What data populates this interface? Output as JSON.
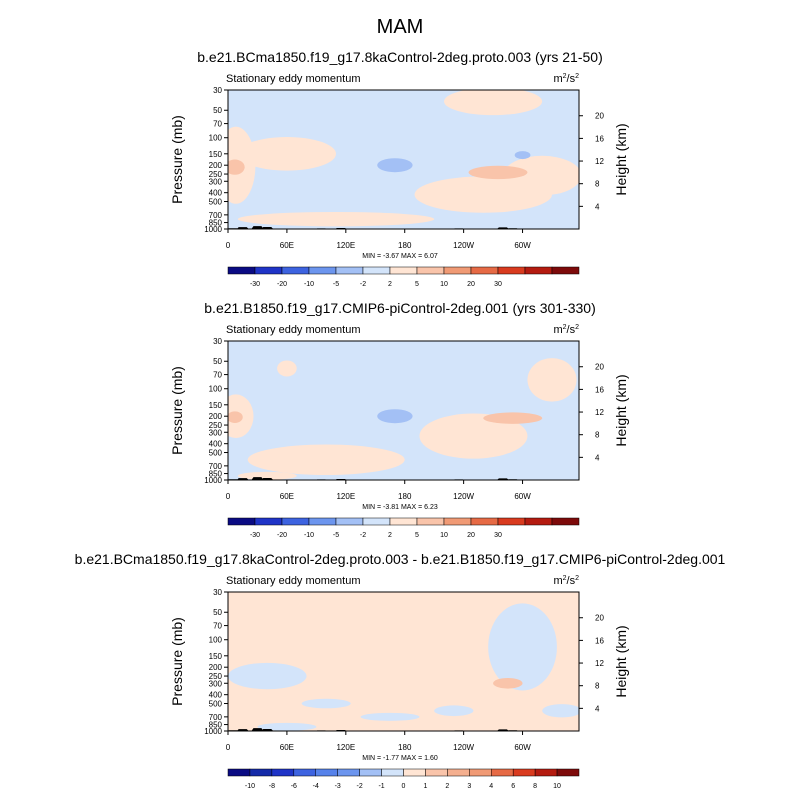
{
  "figure_title": "MAM",
  "colors": {
    "land": "#000000",
    "grid_none": "none"
  },
  "chart_data": [
    {
      "type": "heatmap",
      "title": "b.e21.BCma1850.f19_g17.8kaControl-2deg.proto.003 (yrs 21-50)",
      "subtitle_left": "Stationary eddy momentum",
      "units": "m²/s²",
      "units_base": "m",
      "units_sup1": "2",
      "units_mid": "/s",
      "units_sup2": "2",
      "ylabel_left": "Pressure (mb)",
      "ylabel_right": "Height (km)",
      "x_ticks": [
        "0",
        "60E",
        "120E",
        "180",
        "120W",
        "60W"
      ],
      "x_tick_values": [
        0,
        60,
        120,
        180,
        240,
        300
      ],
      "x_range": [
        0,
        357.5
      ],
      "y_ticks": [
        "30",
        "50",
        "70",
        "100",
        "150",
        "200",
        "250",
        "300",
        "400",
        "500",
        "700",
        "850",
        "1000"
      ],
      "y_tick_values": [
        30,
        50,
        70,
        100,
        150,
        200,
        250,
        300,
        400,
        500,
        700,
        850,
        1000
      ],
      "y_range": [
        30,
        1000
      ],
      "right_ticks": [
        "20",
        "16",
        "12",
        "8",
        "4"
      ],
      "right_tick_values": [
        20,
        16,
        12,
        8,
        4
      ],
      "stats": "MIN = -3.67   MAX =  6.07",
      "colorbar_labels": [
        "-30",
        "-20",
        "-10",
        "-5",
        "-2",
        "2",
        "5",
        "10",
        "20",
        "30"
      ],
      "colorbar_colors": [
        "#0a0b83",
        "#1f34c7",
        "#3d63e0",
        "#6c95ee",
        "#a3c0f5",
        "#d3e4fa",
        "#ffe5d4",
        "#f9c4aa",
        "#f09a75",
        "#e66a45",
        "#d93b1f",
        "#b41b10",
        "#7d0a0a"
      ],
      "field": {
        "background": "#d3e4fa",
        "regions": [
          {
            "level": "pos_weak",
            "cx": 110,
            "cy": 780,
            "rx": 100,
            "ry": 140
          },
          {
            "level": "pos_weak",
            "cx": 260,
            "cy": 420,
            "rx": 70,
            "ry": 180
          },
          {
            "level": "pos_weak",
            "cx": 320,
            "cy": 260,
            "rx": 40,
            "ry": 120
          },
          {
            "level": "pos_weak",
            "cx": 60,
            "cy": 150,
            "rx": 50,
            "ry": 60
          },
          {
            "level": "pos_weak",
            "cx": 8,
            "cy": 200,
            "rx": 20,
            "ry": 150
          },
          {
            "level": "pos_weak",
            "cx": 270,
            "cy": 40,
            "rx": 50,
            "ry": 20
          },
          {
            "level": "pos_mod",
            "cx": 7,
            "cy": 210,
            "rx": 10,
            "ry": 40
          },
          {
            "level": "pos_mod",
            "cx": 275,
            "cy": 240,
            "rx": 30,
            "ry": 40
          },
          {
            "level": "neg_mod",
            "cx": 170,
            "cy": 200,
            "rx": 18,
            "ry": 35
          },
          {
            "level": "neg_mod",
            "cx": 300,
            "cy": 155,
            "rx": 8,
            "ry": 12
          }
        ]
      },
      "topography": [
        {
          "lon": 5,
          "p": 980
        },
        {
          "lon": 15,
          "p": 955
        },
        {
          "lon": 30,
          "p": 930
        },
        {
          "lon": 40,
          "p": 950
        },
        {
          "lon": 95,
          "p": 985
        },
        {
          "lon": 115,
          "p": 975
        },
        {
          "lon": 235,
          "p": 985
        },
        {
          "lon": 280,
          "p": 960
        },
        {
          "lon": 290,
          "p": 980
        }
      ]
    },
    {
      "type": "heatmap",
      "title": "b.e21.B1850.f19_g17.CMIP6-piControl-2deg.001 (yrs 301-330)",
      "subtitle_left": "Stationary eddy momentum",
      "units": "m²/s²",
      "units_base": "m",
      "units_sup1": "2",
      "units_mid": "/s",
      "units_sup2": "2",
      "ylabel_left": "Pressure (mb)",
      "ylabel_right": "Height (km)",
      "x_ticks": [
        "0",
        "60E",
        "120E",
        "180",
        "120W",
        "60W"
      ],
      "x_tick_values": [
        0,
        60,
        120,
        180,
        240,
        300
      ],
      "x_range": [
        0,
        357.5
      ],
      "y_ticks": [
        "30",
        "50",
        "70",
        "100",
        "150",
        "200",
        "250",
        "300",
        "400",
        "500",
        "700",
        "850",
        "1000"
      ],
      "y_tick_values": [
        30,
        50,
        70,
        100,
        150,
        200,
        250,
        300,
        400,
        500,
        700,
        850,
        1000
      ],
      "y_range": [
        30,
        1000
      ],
      "right_ticks": [
        "20",
        "16",
        "12",
        "8",
        "4"
      ],
      "right_tick_values": [
        20,
        16,
        12,
        8,
        4
      ],
      "stats": "MIN = -3.81   MAX =  6.23",
      "colorbar_labels": [
        "-30",
        "-20",
        "-10",
        "-5",
        "-2",
        "2",
        "5",
        "10",
        "20",
        "30"
      ],
      "colorbar_colors": [
        "#0a0b83",
        "#1f34c7",
        "#3d63e0",
        "#6c95ee",
        "#a3c0f5",
        "#d3e4fa",
        "#ffe5d4",
        "#f9c4aa",
        "#f09a75",
        "#e66a45",
        "#d93b1f",
        "#b41b10",
        "#7d0a0a"
      ],
      "field": {
        "background": "#d3e4fa",
        "regions": [
          {
            "level": "pos_weak",
            "cx": 100,
            "cy": 600,
            "rx": 80,
            "ry": 220
          },
          {
            "level": "pos_weak",
            "cx": 250,
            "cy": 330,
            "rx": 55,
            "ry": 170
          },
          {
            "level": "pos_weak",
            "cx": 330,
            "cy": 80,
            "rx": 25,
            "ry": 40
          },
          {
            "level": "pos_weak",
            "cx": 60,
            "cy": 60,
            "rx": 10,
            "ry": 12
          },
          {
            "level": "pos_weak",
            "cx": 8,
            "cy": 200,
            "rx": 18,
            "ry": 100
          },
          {
            "level": "pos_weak",
            "cx": 40,
            "cy": 900,
            "rx": 30,
            "ry": 60
          },
          {
            "level": "pos_mod",
            "cx": 7,
            "cy": 205,
            "rx": 8,
            "ry": 30
          },
          {
            "level": "pos_mod",
            "cx": 290,
            "cy": 210,
            "rx": 30,
            "ry": 30
          },
          {
            "level": "neg_mod",
            "cx": 170,
            "cy": 200,
            "rx": 18,
            "ry": 35
          }
        ]
      },
      "topography": [
        {
          "lon": 5,
          "p": 980
        },
        {
          "lon": 15,
          "p": 955
        },
        {
          "lon": 30,
          "p": 930
        },
        {
          "lon": 40,
          "p": 950
        },
        {
          "lon": 95,
          "p": 985
        },
        {
          "lon": 115,
          "p": 975
        },
        {
          "lon": 235,
          "p": 985
        },
        {
          "lon": 280,
          "p": 960
        },
        {
          "lon": 290,
          "p": 980
        }
      ]
    },
    {
      "type": "heatmap",
      "title": "b.e21.BCma1850.f19_g17.8kaControl-2deg.proto.003 - b.e21.B1850.f19_g17.CMIP6-piControl-2deg.001",
      "subtitle_left": "Stationary eddy momentum",
      "units": "m²/s²",
      "units_base": "m",
      "units_sup1": "2",
      "units_mid": "/s",
      "units_sup2": "2",
      "ylabel_left": "Pressure (mb)",
      "ylabel_right": "Height (km)",
      "x_ticks": [
        "0",
        "60E",
        "120E",
        "180",
        "120W",
        "60W"
      ],
      "x_tick_values": [
        0,
        60,
        120,
        180,
        240,
        300
      ],
      "x_range": [
        0,
        357.5
      ],
      "y_ticks": [
        "30",
        "50",
        "70",
        "100",
        "150",
        "200",
        "250",
        "300",
        "400",
        "500",
        "700",
        "850",
        "1000"
      ],
      "y_tick_values": [
        30,
        50,
        70,
        100,
        150,
        200,
        250,
        300,
        400,
        500,
        700,
        850,
        1000
      ],
      "y_range": [
        30,
        1000
      ],
      "right_ticks": [
        "20",
        "16",
        "12",
        "8",
        "4"
      ],
      "right_tick_values": [
        20,
        16,
        12,
        8,
        4
      ],
      "stats": "MIN = -1.77   MAX =  1.60",
      "colorbar_labels": [
        "-10",
        "-8",
        "-6",
        "-4",
        "-3",
        "-2",
        "-1",
        "0",
        "1",
        "2",
        "3",
        "4",
        "6",
        "8",
        "10"
      ],
      "colorbar_colors": [
        "#0a0b83",
        "#142aa8",
        "#1f34c7",
        "#3d63e0",
        "#5682ea",
        "#6c95ee",
        "#a3c0f5",
        "#d3e4fa",
        "#ffe5d4",
        "#f9c4aa",
        "#f4af8f",
        "#f09a75",
        "#e66a45",
        "#d93b1f",
        "#b41b10",
        "#7d0a0a"
      ],
      "field": {
        "background": "#ffe5d4",
        "regions": [
          {
            "level": "neg_weak",
            "cx": 300,
            "cy": 120,
            "rx": 35,
            "ry": 150
          },
          {
            "level": "neg_weak",
            "cx": 40,
            "cy": 250,
            "rx": 40,
            "ry": 80
          },
          {
            "level": "neg_weak",
            "cx": 100,
            "cy": 500,
            "rx": 25,
            "ry": 60
          },
          {
            "level": "neg_weak",
            "cx": 165,
            "cy": 700,
            "rx": 30,
            "ry": 60
          },
          {
            "level": "neg_weak",
            "cx": 230,
            "cy": 600,
            "rx": 20,
            "ry": 80
          },
          {
            "level": "neg_weak",
            "cx": 340,
            "cy": 600,
            "rx": 20,
            "ry": 100
          },
          {
            "level": "neg_weak",
            "cx": 60,
            "cy": 900,
            "rx": 30,
            "ry": 60
          },
          {
            "level": "pos_mod",
            "cx": 285,
            "cy": 300,
            "rx": 15,
            "ry": 40
          }
        ]
      },
      "topography": [
        {
          "lon": 5,
          "p": 980
        },
        {
          "lon": 15,
          "p": 955
        },
        {
          "lon": 30,
          "p": 930
        },
        {
          "lon": 40,
          "p": 950
        },
        {
          "lon": 95,
          "p": 985
        },
        {
          "lon": 115,
          "p": 975
        },
        {
          "lon": 235,
          "p": 985
        },
        {
          "lon": 280,
          "p": 960
        },
        {
          "lon": 290,
          "p": 980
        }
      ]
    }
  ]
}
